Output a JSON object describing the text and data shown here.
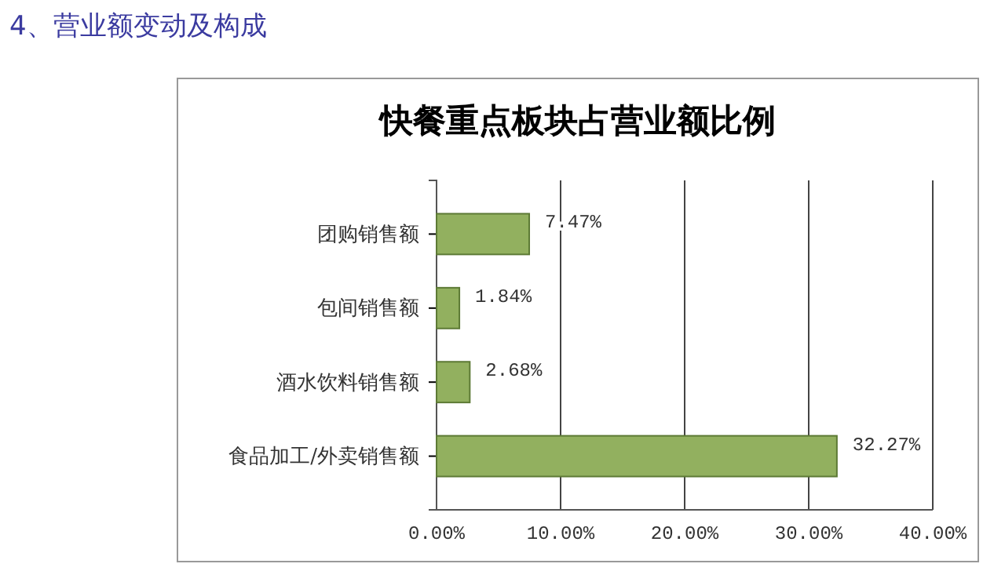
{
  "chart_data": {
    "type": "bar",
    "orientation": "horizontal",
    "title": "快餐重点板块占营业额比例",
    "annotations": [
      "4、营业额变动及构成"
    ],
    "categories": [
      "团购销售额",
      "包间销售额",
      "酒水饮料销售额",
      "食品加工/外卖销售额"
    ],
    "values": [
      7.47,
      1.84,
      2.68,
      32.27
    ],
    "value_labels": [
      "7.47%",
      "1.84%",
      "2.68%",
      "32.27%"
    ],
    "color": "#92b05f",
    "xlim": [
      0,
      40
    ],
    "xticks": [
      {
        "value": 0,
        "label": "0.00%"
      },
      {
        "value": 10,
        "label": "10.00%"
      },
      {
        "value": 20,
        "label": "20.00%"
      },
      {
        "value": 30,
        "label": "30.00%"
      },
      {
        "value": 40,
        "label": "40.00%"
      }
    ],
    "grid": "x"
  }
}
